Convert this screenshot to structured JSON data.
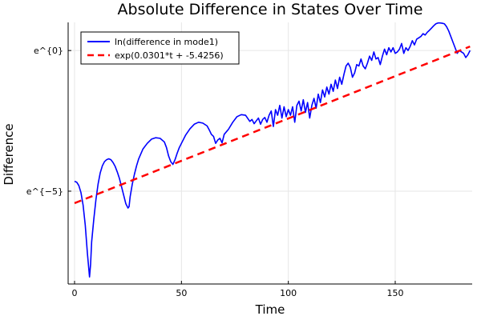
{
  "chart_data": {
    "type": "line",
    "title": "Absolute Difference in States Over Time",
    "xlabel": "Time",
    "ylabel": "Difference",
    "xlim": [
      -3,
      186
    ],
    "ylim": [
      -8.3,
      1.0
    ],
    "x_ticks": [
      {
        "value": 0,
        "label": "0"
      },
      {
        "value": 50,
        "label": "50"
      },
      {
        "value": 100,
        "label": "100"
      },
      {
        "value": 150,
        "label": "150"
      }
    ],
    "y_ticks": [
      {
        "value": 0,
        "label": "e^{0}"
      },
      {
        "value": -5,
        "label": "e^{−5}"
      }
    ],
    "grid": true,
    "legend_position": "top-left",
    "series": [
      {
        "name": "ln(difference in mode1)",
        "color": "#0000ff",
        "style": "solid",
        "points": [
          [
            0,
            -4.65
          ],
          [
            1,
            -4.68
          ],
          [
            2,
            -4.8
          ],
          [
            3,
            -5.05
          ],
          [
            4,
            -5.5
          ],
          [
            5,
            -6.2
          ],
          [
            6,
            -7.2
          ],
          [
            7,
            -8.05
          ],
          [
            7.5,
            -7.6
          ],
          [
            8,
            -6.8
          ],
          [
            9,
            -6.0
          ],
          [
            10,
            -5.3
          ],
          [
            11,
            -4.75
          ],
          [
            12,
            -4.35
          ],
          [
            13,
            -4.1
          ],
          [
            14,
            -3.95
          ],
          [
            15,
            -3.88
          ],
          [
            16,
            -3.85
          ],
          [
            17,
            -3.88
          ],
          [
            18,
            -3.98
          ],
          [
            19,
            -4.12
          ],
          [
            20,
            -4.32
          ],
          [
            21,
            -4.55
          ],
          [
            22,
            -4.85
          ],
          [
            23,
            -5.15
          ],
          [
            24,
            -5.45
          ],
          [
            25,
            -5.6
          ],
          [
            25.5,
            -5.55
          ],
          [
            26,
            -5.2
          ],
          [
            27,
            -4.75
          ],
          [
            28,
            -4.4
          ],
          [
            29,
            -4.1
          ],
          [
            30,
            -3.85
          ],
          [
            32,
            -3.5
          ],
          [
            34,
            -3.3
          ],
          [
            36,
            -3.15
          ],
          [
            38,
            -3.1
          ],
          [
            40,
            -3.12
          ],
          [
            42,
            -3.25
          ],
          [
            43,
            -3.45
          ],
          [
            44,
            -3.75
          ],
          [
            45,
            -3.95
          ],
          [
            46,
            -4.05
          ],
          [
            47,
            -3.88
          ],
          [
            48,
            -3.65
          ],
          [
            49,
            -3.45
          ],
          [
            50,
            -3.3
          ],
          [
            52,
            -3.0
          ],
          [
            54,
            -2.78
          ],
          [
            56,
            -2.62
          ],
          [
            58,
            -2.55
          ],
          [
            60,
            -2.58
          ],
          [
            62,
            -2.68
          ],
          [
            63,
            -2.82
          ],
          [
            64,
            -2.98
          ],
          [
            65,
            -3.05
          ],
          [
            66,
            -3.3
          ],
          [
            67,
            -3.18
          ],
          [
            68,
            -3.12
          ],
          [
            69,
            -3.28
          ],
          [
            70,
            -2.98
          ],
          [
            72,
            -2.8
          ],
          [
            74,
            -2.55
          ],
          [
            76,
            -2.35
          ],
          [
            78,
            -2.28
          ],
          [
            80,
            -2.3
          ],
          [
            82,
            -2.52
          ],
          [
            83,
            -2.45
          ],
          [
            84,
            -2.6
          ],
          [
            85,
            -2.5
          ],
          [
            86,
            -2.4
          ],
          [
            87,
            -2.62
          ],
          [
            88,
            -2.45
          ],
          [
            89,
            -2.38
          ],
          [
            90,
            -2.55
          ],
          [
            91,
            -2.3
          ],
          [
            92,
            -2.15
          ],
          [
            93,
            -2.7
          ],
          [
            94,
            -2.1
          ],
          [
            95,
            -2.3
          ],
          [
            96,
            -1.95
          ],
          [
            97,
            -2.4
          ],
          [
            98,
            -2.0
          ],
          [
            99,
            -2.35
          ],
          [
            100,
            -2.1
          ],
          [
            101,
            -2.3
          ],
          [
            102,
            -2.0
          ],
          [
            103,
            -2.55
          ],
          [
            104,
            -1.95
          ],
          [
            105,
            -1.8
          ],
          [
            106,
            -2.15
          ],
          [
            107,
            -1.75
          ],
          [
            108,
            -2.2
          ],
          [
            109,
            -1.85
          ],
          [
            110,
            -2.4
          ],
          [
            111,
            -1.95
          ],
          [
            112,
            -1.7
          ],
          [
            113,
            -2.05
          ],
          [
            114,
            -1.55
          ],
          [
            115,
            -1.85
          ],
          [
            116,
            -1.4
          ],
          [
            117,
            -1.65
          ],
          [
            118,
            -1.3
          ],
          [
            119,
            -1.55
          ],
          [
            120,
            -1.2
          ],
          [
            121,
            -1.45
          ],
          [
            122,
            -1.05
          ],
          [
            123,
            -1.35
          ],
          [
            124,
            -0.95
          ],
          [
            125,
            -1.2
          ],
          [
            126,
            -0.85
          ],
          [
            127,
            -0.55
          ],
          [
            128,
            -0.45
          ],
          [
            129,
            -0.6
          ],
          [
            130,
            -0.95
          ],
          [
            131,
            -0.8
          ],
          [
            132,
            -0.5
          ],
          [
            133,
            -0.55
          ],
          [
            134,
            -0.3
          ],
          [
            135,
            -0.55
          ],
          [
            136,
            -0.65
          ],
          [
            137,
            -0.45
          ],
          [
            138,
            -0.2
          ],
          [
            139,
            -0.35
          ],
          [
            140,
            -0.05
          ],
          [
            141,
            -0.3
          ],
          [
            142,
            -0.25
          ],
          [
            143,
            -0.5
          ],
          [
            144,
            -0.2
          ],
          [
            145,
            0.05
          ],
          [
            146,
            -0.15
          ],
          [
            147,
            0.1
          ],
          [
            148,
            -0.05
          ],
          [
            149,
            0.1
          ],
          [
            150,
            -0.1
          ],
          [
            151,
            -0.05
          ],
          [
            152,
            0.05
          ],
          [
            153,
            0.25
          ],
          [
            154,
            -0.1
          ],
          [
            155,
            0.1
          ],
          [
            156,
            0.0
          ],
          [
            157,
            0.15
          ],
          [
            158,
            0.35
          ],
          [
            159,
            0.2
          ],
          [
            160,
            0.4
          ],
          [
            161,
            0.45
          ],
          [
            162,
            0.5
          ],
          [
            163,
            0.6
          ],
          [
            164,
            0.55
          ],
          [
            165,
            0.65
          ],
          [
            166,
            0.72
          ],
          [
            167,
            0.8
          ],
          [
            168,
            0.88
          ],
          [
            169,
            0.95
          ],
          [
            170,
            0.98
          ],
          [
            171,
            0.98
          ],
          [
            172,
            0.97
          ],
          [
            173,
            0.95
          ],
          [
            174,
            0.85
          ],
          [
            175,
            0.7
          ],
          [
            176,
            0.5
          ],
          [
            177,
            0.3
          ],
          [
            178,
            0.1
          ],
          [
            179,
            -0.1
          ],
          [
            180,
            0.0
          ],
          [
            181,
            -0.05
          ],
          [
            182,
            -0.1
          ],
          [
            183,
            -0.25
          ],
          [
            184,
            -0.15
          ],
          [
            185,
            0.0
          ]
        ]
      },
      {
        "name": "exp(0.0301*t + -5.4256)",
        "color": "#ff0000",
        "style": "dashed",
        "slope": 0.0301,
        "intercept": -5.4256,
        "x_range": [
          0,
          185
        ]
      }
    ]
  }
}
